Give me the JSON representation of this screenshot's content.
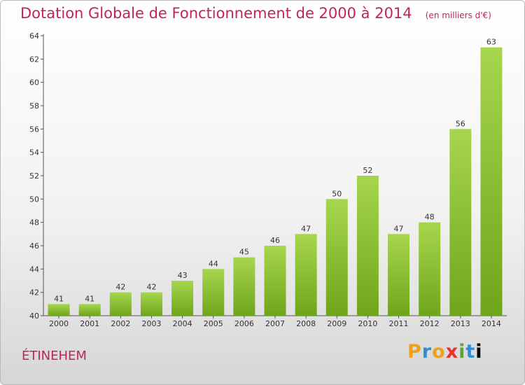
{
  "header": {
    "title": "Dotation Globale de Fonctionnement de 2000 à 2014",
    "unit": "(en milliers d'€)"
  },
  "footer": {
    "commune": "ÉTINEHEM",
    "logo_letters": [
      "P",
      "r",
      "o",
      "x",
      "i",
      "t",
      "i"
    ]
  },
  "chart_data": {
    "type": "bar",
    "categories": [
      "2000",
      "2001",
      "2002",
      "2003",
      "2004",
      "2005",
      "2006",
      "2007",
      "2008",
      "2009",
      "2010",
      "2011",
      "2012",
      "2013",
      "2014"
    ],
    "values": [
      41,
      41,
      42,
      42,
      43,
      44,
      45,
      46,
      47,
      50,
      52,
      47,
      48,
      56,
      63
    ],
    "ylim": [
      40,
      64
    ],
    "yticks": [
      40,
      42,
      44,
      46,
      48,
      50,
      52,
      54,
      56,
      58,
      60,
      62,
      64
    ],
    "grid": false,
    "bar_color_light": "#a6d64e",
    "bar_color_dark": "#6fa51c",
    "text_color": "#c1235a"
  }
}
